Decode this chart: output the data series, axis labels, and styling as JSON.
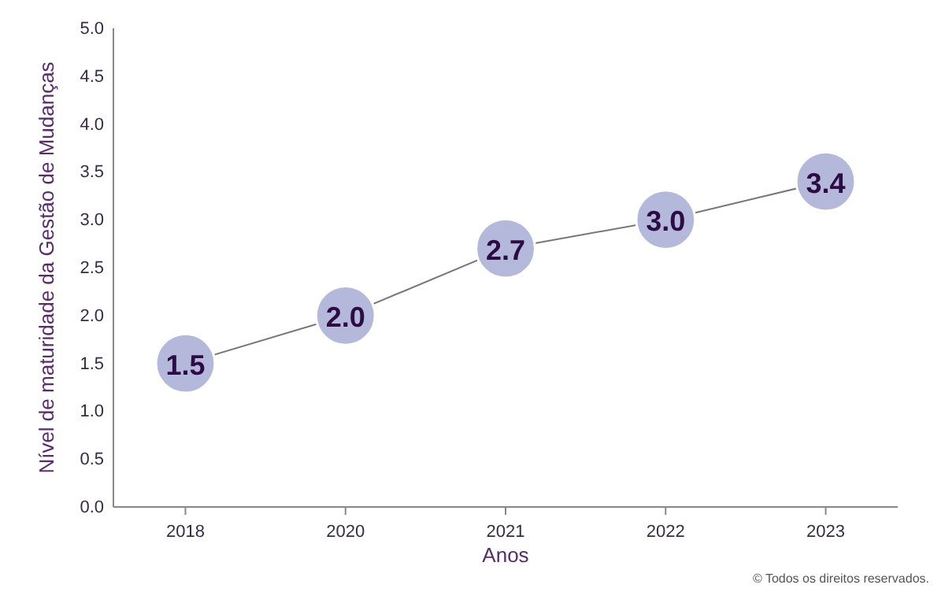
{
  "chart_data": {
    "type": "line",
    "categories": [
      "2018",
      "2020",
      "2021",
      "2022",
      "2023"
    ],
    "series": [
      {
        "color": "#b4b9dc",
        "values": [
          1.5,
          2.0,
          2.7,
          3.0,
          3.4
        ],
        "value_labels": [
          "1.5",
          "2.0",
          "2.7",
          "3.0",
          "3.4"
        ]
      }
    ],
    "ylim": [
      0,
      5
    ],
    "yticks": [
      {
        "value": 0,
        "label": "0.0"
      },
      {
        "value": 0.5,
        "label": "0.5"
      },
      {
        "value": 1,
        "label": "1.0"
      },
      {
        "value": 1.5,
        "label": "1.5"
      },
      {
        "value": 2,
        "label": "2.0"
      },
      {
        "value": 2.5,
        "label": "2.5"
      },
      {
        "value": 3,
        "label": "3.0"
      },
      {
        "value": 3.5,
        "label": "3.5"
      },
      {
        "value": 4,
        "label": "4.0"
      },
      {
        "value": 4.5,
        "label": "4.5"
      },
      {
        "value": 5,
        "label": "5.0"
      }
    ],
    "xlabel": "Anos",
    "ylabel": "Nível de maturidade da Gestão de Mudanças",
    "marker": "circle",
    "grid": false,
    "annotations": [
      "© Todos os direitos reservados."
    ]
  }
}
